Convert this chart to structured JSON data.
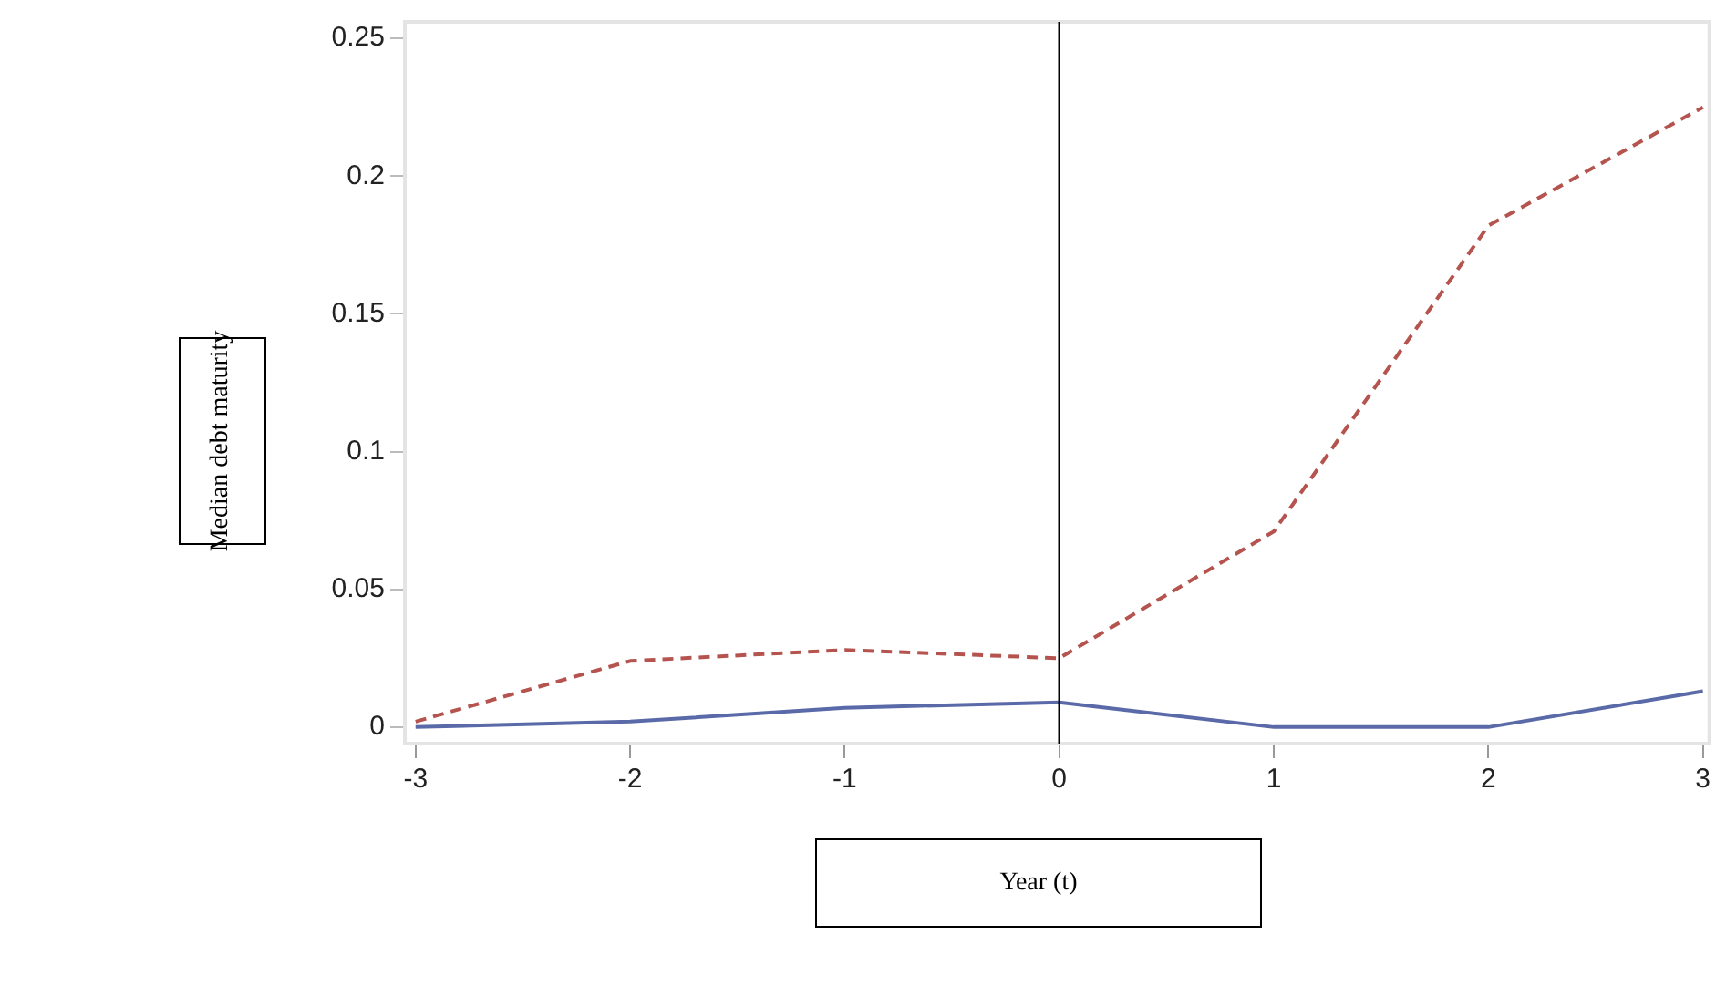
{
  "chart_data": {
    "type": "line",
    "xlabel": "Year (t)",
    "ylabel": "Median debt maturity",
    "x": [
      -3,
      -2,
      -1,
      0,
      1,
      2,
      3
    ],
    "series": [
      {
        "color": "#b5534e",
        "line_style": "dashed",
        "values": [
          0.002,
          0.024,
          0.028,
          0.025,
          0.071,
          0.182,
          0.225
        ]
      },
      {
        "color": "#5a6aa8",
        "line_style": "solid",
        "values": [
          0,
          0.002,
          0.007,
          0.009,
          0,
          0,
          0.013
        ]
      }
    ],
    "xlim": [
      -3.05,
      3.03
    ],
    "xticks": [
      -3,
      -2,
      -1,
      0,
      1,
      2,
      3
    ],
    "ylim": [
      -0.006,
      0.256
    ],
    "yticks": [
      0,
      0.05,
      0.1,
      0.15,
      0.2,
      0.25
    ],
    "ref_lines": [
      {
        "axis": "x",
        "value": 0,
        "color": "#000000"
      }
    ],
    "marker": "none"
  }
}
